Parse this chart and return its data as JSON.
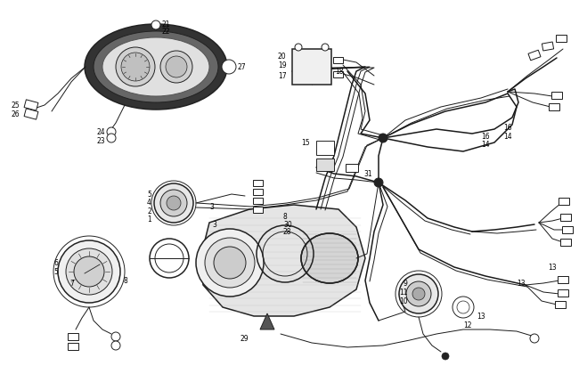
{
  "background_color": "#ffffff",
  "fig_width": 6.5,
  "fig_height": 4.2,
  "dpi": 100,
  "line_color": "#1a1a1a",
  "dark_color": "#222222",
  "gray_color": "#888888",
  "light_gray": "#cccccc",
  "mid_gray": "#999999"
}
